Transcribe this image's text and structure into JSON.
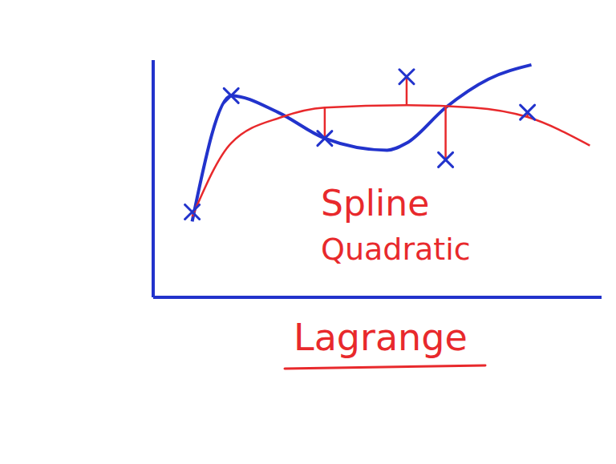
{
  "chart_data": {
    "type": "line",
    "annotations": [
      "Spline",
      "Quadratic",
      "Lagrange"
    ],
    "xlim": [
      0,
      11.5
    ],
    "ylim": [
      0,
      10
    ],
    "xticks": [],
    "yticks": [],
    "tick_labels": false,
    "series": [
      {
        "type": "line",
        "color": "#2233cc",
        "x": [
          1.0,
          2.0,
          3.2,
          4.4,
          6.0,
          6.5,
          7.5,
          8.6,
          9.7
        ],
        "values": [
          3.2,
          8.5,
          7.8,
          6.7,
          6.2,
          6.5,
          8.0,
          9.2,
          9.8
        ]
      },
      {
        "type": "line",
        "color": "#e8292c",
        "x": [
          1.0,
          2.0,
          3.3,
          4.4,
          6.5,
          8.2,
          9.6,
          11.2
        ],
        "values": [
          3.4,
          6.5,
          7.6,
          8.0,
          8.1,
          8.0,
          7.6,
          6.4
        ]
      },
      {
        "type": "scatter",
        "marker": "x",
        "color": "#2233cc",
        "x": [
          1.0,
          2.0,
          4.4,
          6.5,
          7.5,
          9.6
        ],
        "values": [
          3.6,
          8.5,
          6.7,
          9.3,
          5.8,
          7.8
        ],
        "fit": [
          null,
          null,
          8.0,
          8.1,
          8.05,
          7.6
        ]
      }
    ]
  }
}
